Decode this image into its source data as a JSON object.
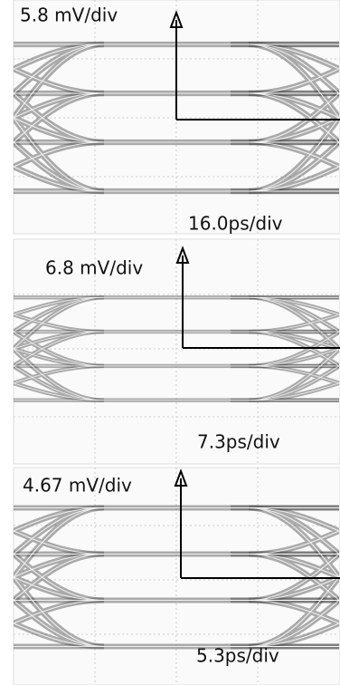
{
  "panels": [
    {
      "voltage_scale": "5.8 mV/div",
      "time_scale": "16.0ps/div"
    },
    {
      "voltage_scale": "6.8 mV/div",
      "time_scale": "7.3ps/div"
    },
    {
      "voltage_scale": "4.67 mV/div",
      "time_scale": "5.3ps/div"
    }
  ]
}
